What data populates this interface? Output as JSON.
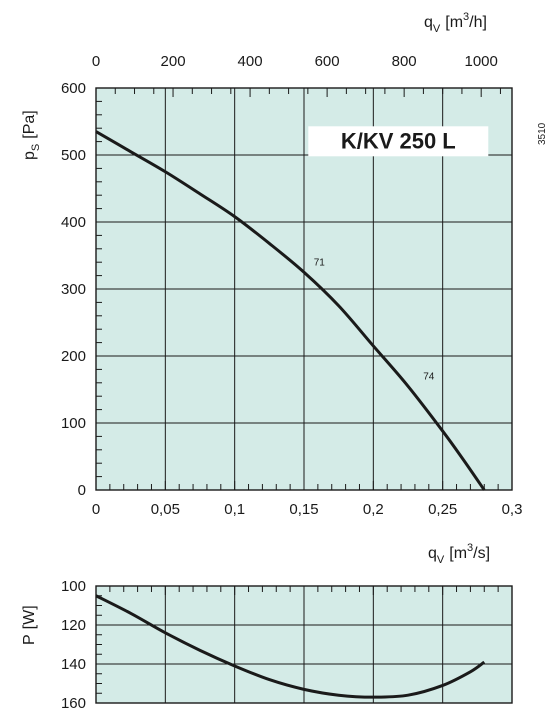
{
  "code": "3510",
  "colors": {
    "plot_bg": "#d4ebe7",
    "grid": "#1a1a1a",
    "curve": "#1a1a1a"
  },
  "chart_data": [
    {
      "type": "line",
      "title": "K/KV 250 L",
      "xlabel": {
        "main": "q",
        "sub": "V",
        "unit_pre": "[m",
        "unit_sup": "3",
        "unit_post": "/s]"
      },
      "x2label": {
        "main": "q",
        "sub": "V",
        "unit_pre": "[m",
        "unit_sup": "3",
        "unit_post": "/h]"
      },
      "ylabel": {
        "main": "p",
        "sub": "S",
        "unit": "[Pa]"
      },
      "xlim": [
        0,
        0.3
      ],
      "ylim": [
        0,
        600
      ],
      "x2lim": [
        0,
        1080
      ],
      "xticks": [
        {
          "v": 0,
          "label": "0"
        },
        {
          "v": 0.05,
          "label": "0,05"
        },
        {
          "v": 0.1,
          "label": "0,1"
        },
        {
          "v": 0.15,
          "label": "0,15"
        },
        {
          "v": 0.2,
          "label": "0,2"
        },
        {
          "v": 0.25,
          "label": "0,25"
        },
        {
          "v": 0.3,
          "label": "0,3"
        }
      ],
      "x2ticks": [
        {
          "v": 0,
          "label": "0"
        },
        {
          "v": 200,
          "label": "200"
        },
        {
          "v": 400,
          "label": "400"
        },
        {
          "v": 600,
          "label": "600"
        },
        {
          "v": 800,
          "label": "800"
        },
        {
          "v": 1000,
          "label": "1000"
        }
      ],
      "yticks": [
        {
          "v": 0,
          "label": "0"
        },
        {
          "v": 100,
          "label": "100"
        },
        {
          "v": 200,
          "label": "200"
        },
        {
          "v": 300,
          "label": "300"
        },
        {
          "v": 400,
          "label": "400"
        },
        {
          "v": 500,
          "label": "500"
        },
        {
          "v": 600,
          "label": "600"
        }
      ],
      "grid": true,
      "series": [
        {
          "x": [
            0,
            0.025,
            0.05,
            0.075,
            0.1,
            0.125,
            0.15,
            0.175,
            0.2,
            0.225,
            0.25,
            0.265,
            0.28
          ],
          "values": [
            535,
            505,
            475,
            442,
            408,
            368,
            325,
            275,
            215,
            155,
            88,
            45,
            0
          ]
        }
      ],
      "annotations": [
        {
          "x": 0.157,
          "y": 335,
          "text": "71"
        },
        {
          "x": 0.236,
          "y": 165,
          "text": "74"
        }
      ]
    },
    {
      "type": "line",
      "xlim": [
        0,
        0.3
      ],
      "ylabel": {
        "main": "P",
        "unit": "[W]"
      },
      "ylim": [
        100,
        160
      ],
      "y_inverted": true,
      "yticks": [
        {
          "v": 100,
          "label": "100"
        },
        {
          "v": 120,
          "label": "120"
        },
        {
          "v": 140,
          "label": "140"
        },
        {
          "v": 160,
          "label": "160"
        }
      ],
      "grid": true,
      "series": [
        {
          "x": [
            0,
            0.025,
            0.05,
            0.075,
            0.1,
            0.125,
            0.15,
            0.175,
            0.2,
            0.225,
            0.25,
            0.27,
            0.28
          ],
          "values": [
            105,
            114,
            124,
            133,
            141,
            148,
            153,
            156,
            157,
            156,
            151,
            144,
            139
          ]
        }
      ]
    }
  ]
}
